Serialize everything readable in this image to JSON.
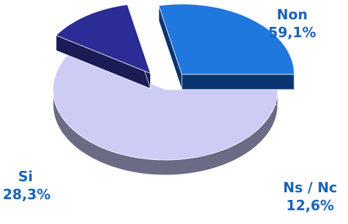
{
  "chart_data": {
    "type": "pie",
    "title": "",
    "slices": [
      {
        "label": "Non",
        "value_label": "59,1%",
        "value": 59.1,
        "top_color": "#ccccf5",
        "side_color": "#6b6b86"
      },
      {
        "label": "Ns / Nc",
        "value_label": "12,6%",
        "value": 12.6,
        "top_color": "#2c2c96",
        "side_color": "#1b1b55",
        "exploded": true
      },
      {
        "label": "Si",
        "value_label": "28,3%",
        "value": 28.3,
        "top_color": "#1f78dd",
        "side_color": "#0c3470",
        "exploded": true
      }
    ],
    "legend": "none",
    "label_color": "#1a64b8"
  }
}
